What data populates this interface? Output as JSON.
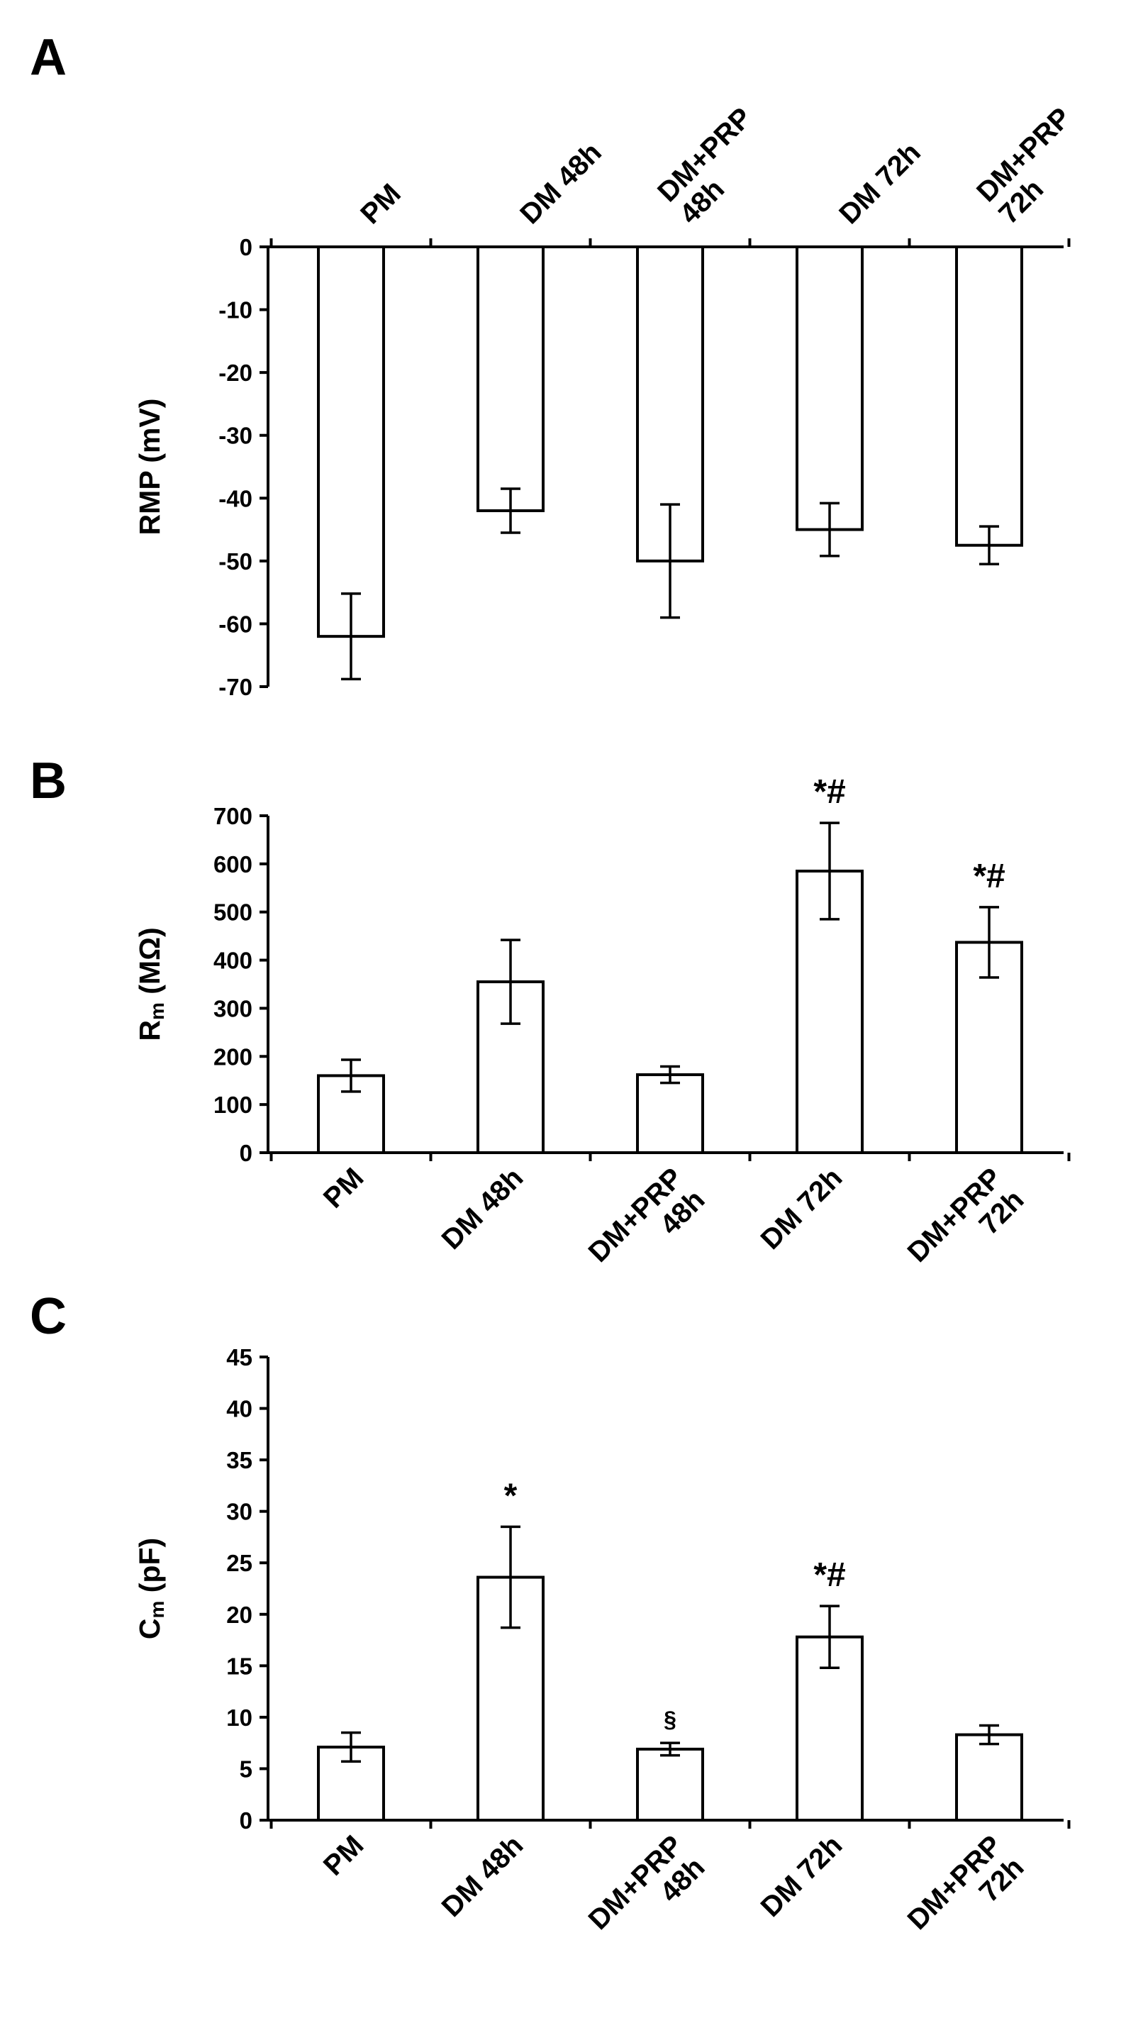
{
  "figure": {
    "panels": [
      {
        "id": "A",
        "label": "A"
      },
      {
        "id": "B",
        "label": "B"
      },
      {
        "id": "C",
        "label": "C"
      }
    ]
  },
  "chart_data": [
    {
      "panel": "A",
      "type": "bar",
      "categories": [
        [
          "PM"
        ],
        [
          "DM 48h"
        ],
        [
          "DM+PRP",
          "48h"
        ],
        [
          "DM 72h"
        ],
        [
          "DM+PRP",
          "72h"
        ]
      ],
      "values": [
        -62,
        -42,
        -50,
        -45,
        -47.5
      ],
      "error": [
        6.8,
        3.5,
        9,
        4.2,
        3
      ],
      "annotations": [
        "",
        "",
        "",
        "",
        ""
      ],
      "ylabel": "RMP (mV)",
      "ylabel_sub": "",
      "ylabel_rest": "",
      "ylim": [
        -70,
        0
      ],
      "yticks": [
        0,
        -10,
        -20,
        -30,
        -40,
        -50,
        -60,
        -70
      ],
      "category_position": "top"
    },
    {
      "panel": "B",
      "type": "bar",
      "categories": [
        [
          "PM"
        ],
        [
          "DM 48h"
        ],
        [
          "DM+PRP",
          "48h"
        ],
        [
          "DM 72h"
        ],
        [
          "DM+PRP",
          "72h"
        ]
      ],
      "values": [
        160,
        355,
        162,
        585,
        437
      ],
      "error": [
        33,
        87,
        17,
        100,
        73
      ],
      "annotations": [
        "",
        "",
        "",
        "*#",
        "*#"
      ],
      "ylabel": "R",
      "ylabel_sub": "m",
      "ylabel_rest": " (MΩ)",
      "ylim": [
        0,
        700
      ],
      "yticks": [
        0,
        100,
        200,
        300,
        400,
        500,
        600,
        700
      ],
      "category_position": "bottom"
    },
    {
      "panel": "C",
      "type": "bar",
      "categories": [
        [
          "PM"
        ],
        [
          "DM 48h"
        ],
        [
          "DM+PRP",
          "48h"
        ],
        [
          "DM 72h"
        ],
        [
          "DM+PRP",
          "72h"
        ]
      ],
      "values": [
        7.1,
        23.6,
        6.9,
        17.8,
        8.3
      ],
      "error": [
        1.4,
        4.9,
        0.6,
        3.0,
        0.9
      ],
      "annotations": [
        "",
        "*",
        "§",
        "*#",
        ""
      ],
      "ylabel": "C",
      "ylabel_sub": "m",
      "ylabel_rest": " (pF)",
      "ylim": [
        0,
        45
      ],
      "yticks": [
        0,
        5,
        10,
        15,
        20,
        25,
        30,
        35,
        40,
        45
      ],
      "category_position": "bottom"
    }
  ]
}
